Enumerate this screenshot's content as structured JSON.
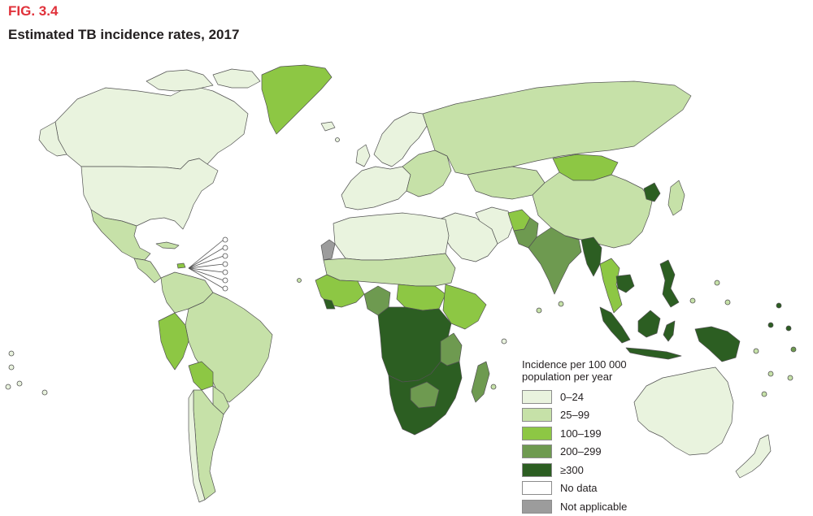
{
  "figure": {
    "label": "FIG. 3.4",
    "title": "Estimated TB incidence rates, 2017"
  },
  "colors": {
    "c0_24": "#e9f3de",
    "c25_99": "#c6e1a8",
    "c100_199": "#8dc744",
    "c200_299": "#6e9a50",
    "c300": "#2c5e22",
    "no_data": "#ffffff",
    "not_applicable": "#9c9c9c",
    "border": "#525252"
  },
  "legend": {
    "title": "Incidence per 100 000 population per year",
    "items": [
      {
        "label": "0–24",
        "color": "#e9f3de"
      },
      {
        "label": "25–99",
        "color": "#c6e1a8"
      },
      {
        "label": "100–199",
        "color": "#8dc744"
      },
      {
        "label": "200–299",
        "color": "#6e9a50"
      },
      {
        "label": "≥300",
        "color": "#2c5e22"
      },
      {
        "label": "No data",
        "color": "#ffffff"
      },
      {
        "label": "Not applicable",
        "color": "#9c9c9c"
      }
    ]
  }
}
